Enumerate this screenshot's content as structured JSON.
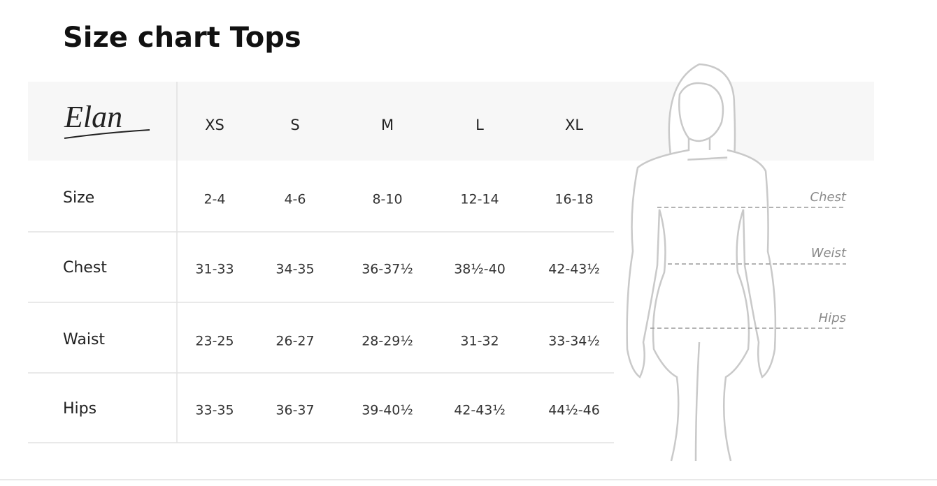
{
  "title": "Size chart Tops",
  "brand": "Elan",
  "table": {
    "columns": [
      "XS",
      "S",
      "M",
      "L",
      "XL"
    ],
    "rows": [
      {
        "label": "Size",
        "values": [
          "2-4",
          "4-6",
          "8-10",
          "12-14",
          "16-18"
        ]
      },
      {
        "label": "Chest",
        "values": [
          "31-33",
          "34-35",
          "36-37½",
          "38½-40",
          "42-43½"
        ]
      },
      {
        "label": "Waist",
        "values": [
          "23-25",
          "26-27",
          "28-29½",
          "31-32",
          "33-34½"
        ]
      },
      {
        "label": "Hips",
        "values": [
          "33-35",
          "36-37",
          "39-40½",
          "42-43½",
          "44½-46"
        ]
      }
    ]
  },
  "figure": {
    "labels": [
      "Chest",
      "Weist",
      "Hips"
    ]
  }
}
